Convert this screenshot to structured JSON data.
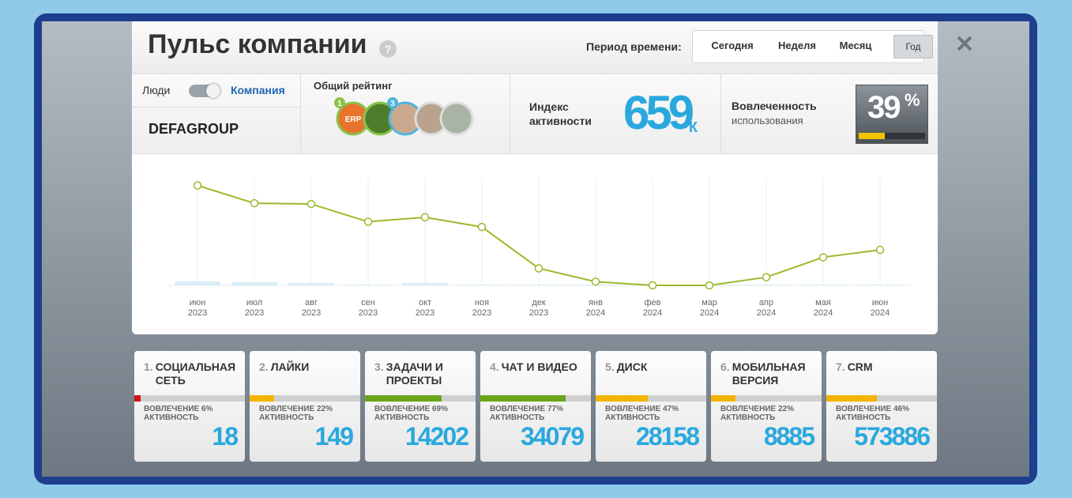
{
  "header": {
    "title": "Пульс компании",
    "help": "?",
    "period_label": "Период времени:",
    "periods": [
      "Сегодня",
      "Неделя",
      "Месяц",
      "Год"
    ],
    "selected_period": 3
  },
  "info": {
    "toggle_left": "Люди",
    "toggle_right": "Компания",
    "company": "DEFAGROUP",
    "rating": {
      "title": "Общий рейтинг",
      "erp": "ERP",
      "badges": [
        "1",
        "3"
      ]
    },
    "activity": {
      "label_line1": "Индекс",
      "label_line2": "активности",
      "value": "659",
      "unit": "К"
    },
    "engagement": {
      "label": "Вовлеченность",
      "sublabel": "использования",
      "value": 39,
      "unit": "%"
    }
  },
  "chart_data": {
    "type": "line",
    "categories": [
      "июн 2023",
      "июл 2023",
      "авг 2023",
      "сен 2023",
      "окт 2023",
      "ноя 2023",
      "дек 2023",
      "янв 2024",
      "фев 2024",
      "мар 2024",
      "апр 2024",
      "мая 2024",
      "июн 2024"
    ],
    "series": [
      {
        "color": "#9aba2c",
        "values": [
          135,
          111,
          110,
          86,
          92,
          79,
          23,
          5,
          0,
          0,
          11,
          38,
          48
        ]
      },
      {
        "type": "bar",
        "color": "#d9eef9",
        "values": [
          5,
          4,
          3,
          1,
          3,
          1,
          1,
          1,
          1,
          1,
          1,
          1,
          1
        ]
      }
    ],
    "ylim": [
      0,
      140
    ]
  },
  "modules": [
    {
      "index": "1.",
      "name": "СОЦИАЛЬНАЯ СЕТЬ",
      "engagement": 6,
      "engagement_text": "ВОВЛЕЧЕНИЕ 6%",
      "activity_label": "АКТИВНОСТЬ",
      "activity": "18",
      "color": "#d0121b"
    },
    {
      "index": "2.",
      "name": "ЛАЙКИ",
      "engagement": 22,
      "engagement_text": "ВОВЛЕЧЕНИЕ 22%",
      "activity_label": "АКТИВНОСТЬ",
      "activity": "149",
      "color": "#f3b400"
    },
    {
      "index": "3.",
      "name": "ЗАДАЧИ И ПРОЕКТЫ",
      "engagement": 69,
      "engagement_text": "ВОВЛЕЧЕНИЕ 69%",
      "activity_label": "АКТИВНОСТЬ",
      "activity": "14202",
      "color": "#6aa51c"
    },
    {
      "index": "4.",
      "name": "ЧАТ И ВИДЕО",
      "engagement": 77,
      "engagement_text": "ВОВЛЕЧЕНИЕ 77%",
      "activity_label": "АКТИВНОСТЬ",
      "activity": "34079",
      "color": "#6aa51c"
    },
    {
      "index": "5.",
      "name": "ДИСК",
      "engagement": 47,
      "engagement_text": "ВОВЛЕЧЕНИЕ 47%",
      "activity_label": "АКТИВНОСТЬ",
      "activity": "28158",
      "color": "#f3b400"
    },
    {
      "index": "6.",
      "name": "МОБИЛЬНАЯ ВЕРСИЯ",
      "engagement": 22,
      "engagement_text": "ВОВЛЕЧЕНИЕ 22%",
      "activity_label": "АКТИВНОСТЬ",
      "activity": "8885",
      "color": "#f3b400"
    },
    {
      "index": "7.",
      "name": "CRM",
      "engagement": 46,
      "engagement_text": "ВОВЛЕЧЕНИЕ 46%",
      "activity_label": "АКТИВНОСТЬ",
      "activity": "573886",
      "color": "#f3b400"
    }
  ]
}
